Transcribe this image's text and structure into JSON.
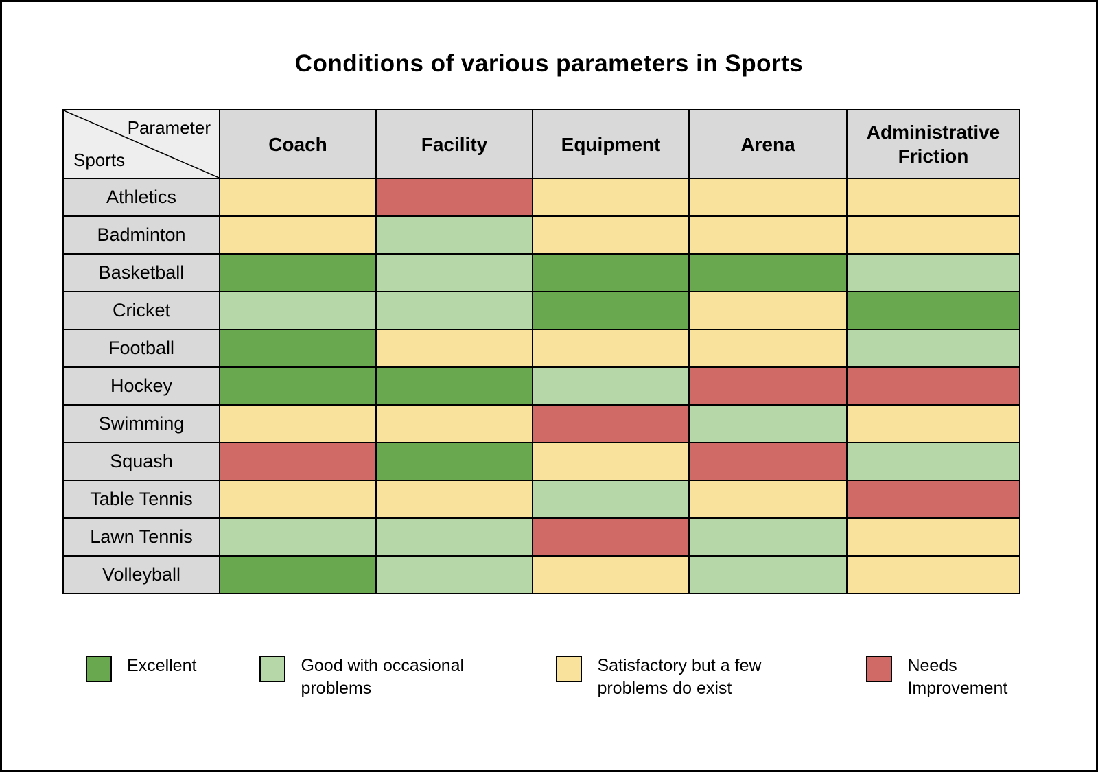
{
  "chart_data": {
    "type": "heatmap",
    "title": "Conditions of various parameters in Sports",
    "corner": {
      "top_label": "Parameter",
      "bottom_label": "Sports"
    },
    "columns": [
      "Coach",
      "Facility",
      "Equipment",
      "Arena",
      "Administrative Friction"
    ],
    "rows": [
      {
        "sport": "Athletics",
        "values": [
          "satisfactory",
          "needs_improvement",
          "satisfactory",
          "satisfactory",
          "satisfactory"
        ]
      },
      {
        "sport": "Badminton",
        "values": [
          "satisfactory",
          "good",
          "satisfactory",
          "satisfactory",
          "satisfactory"
        ]
      },
      {
        "sport": "Basketball",
        "values": [
          "excellent",
          "good",
          "excellent",
          "excellent",
          "good"
        ]
      },
      {
        "sport": "Cricket",
        "values": [
          "good",
          "good",
          "excellent",
          "satisfactory",
          "excellent"
        ]
      },
      {
        "sport": "Football",
        "values": [
          "excellent",
          "satisfactory",
          "satisfactory",
          "satisfactory",
          "good"
        ]
      },
      {
        "sport": "Hockey",
        "values": [
          "excellent",
          "excellent",
          "good",
          "needs_improvement",
          "needs_improvement"
        ]
      },
      {
        "sport": "Swimming",
        "values": [
          "satisfactory",
          "satisfactory",
          "needs_improvement",
          "good",
          "satisfactory"
        ]
      },
      {
        "sport": "Squash",
        "values": [
          "needs_improvement",
          "excellent",
          "satisfactory",
          "needs_improvement",
          "good"
        ]
      },
      {
        "sport": "Table Tennis",
        "values": [
          "satisfactory",
          "satisfactory",
          "good",
          "satisfactory",
          "needs_improvement"
        ]
      },
      {
        "sport": "Lawn Tennis",
        "values": [
          "good",
          "good",
          "needs_improvement",
          "good",
          "satisfactory"
        ]
      },
      {
        "sport": "Volleyball",
        "values": [
          "excellent",
          "good",
          "satisfactory",
          "good",
          "satisfactory"
        ]
      }
    ],
    "legend": [
      {
        "key": "excellent",
        "label": "Excellent",
        "color": "#6aa84f"
      },
      {
        "key": "good",
        "label": "Good with occasional problems",
        "color": "#b6d7a8"
      },
      {
        "key": "satisfactory",
        "label": "Satisfactory but a few problems do exist",
        "color": "#f9e29b"
      },
      {
        "key": "needs_improvement",
        "label": "Needs Improvement",
        "color": "#d06a66"
      }
    ]
  },
  "colors": {
    "header_bg": "#d9d9d9",
    "corner_bg": "#eeeeee",
    "border": "#000000"
  }
}
